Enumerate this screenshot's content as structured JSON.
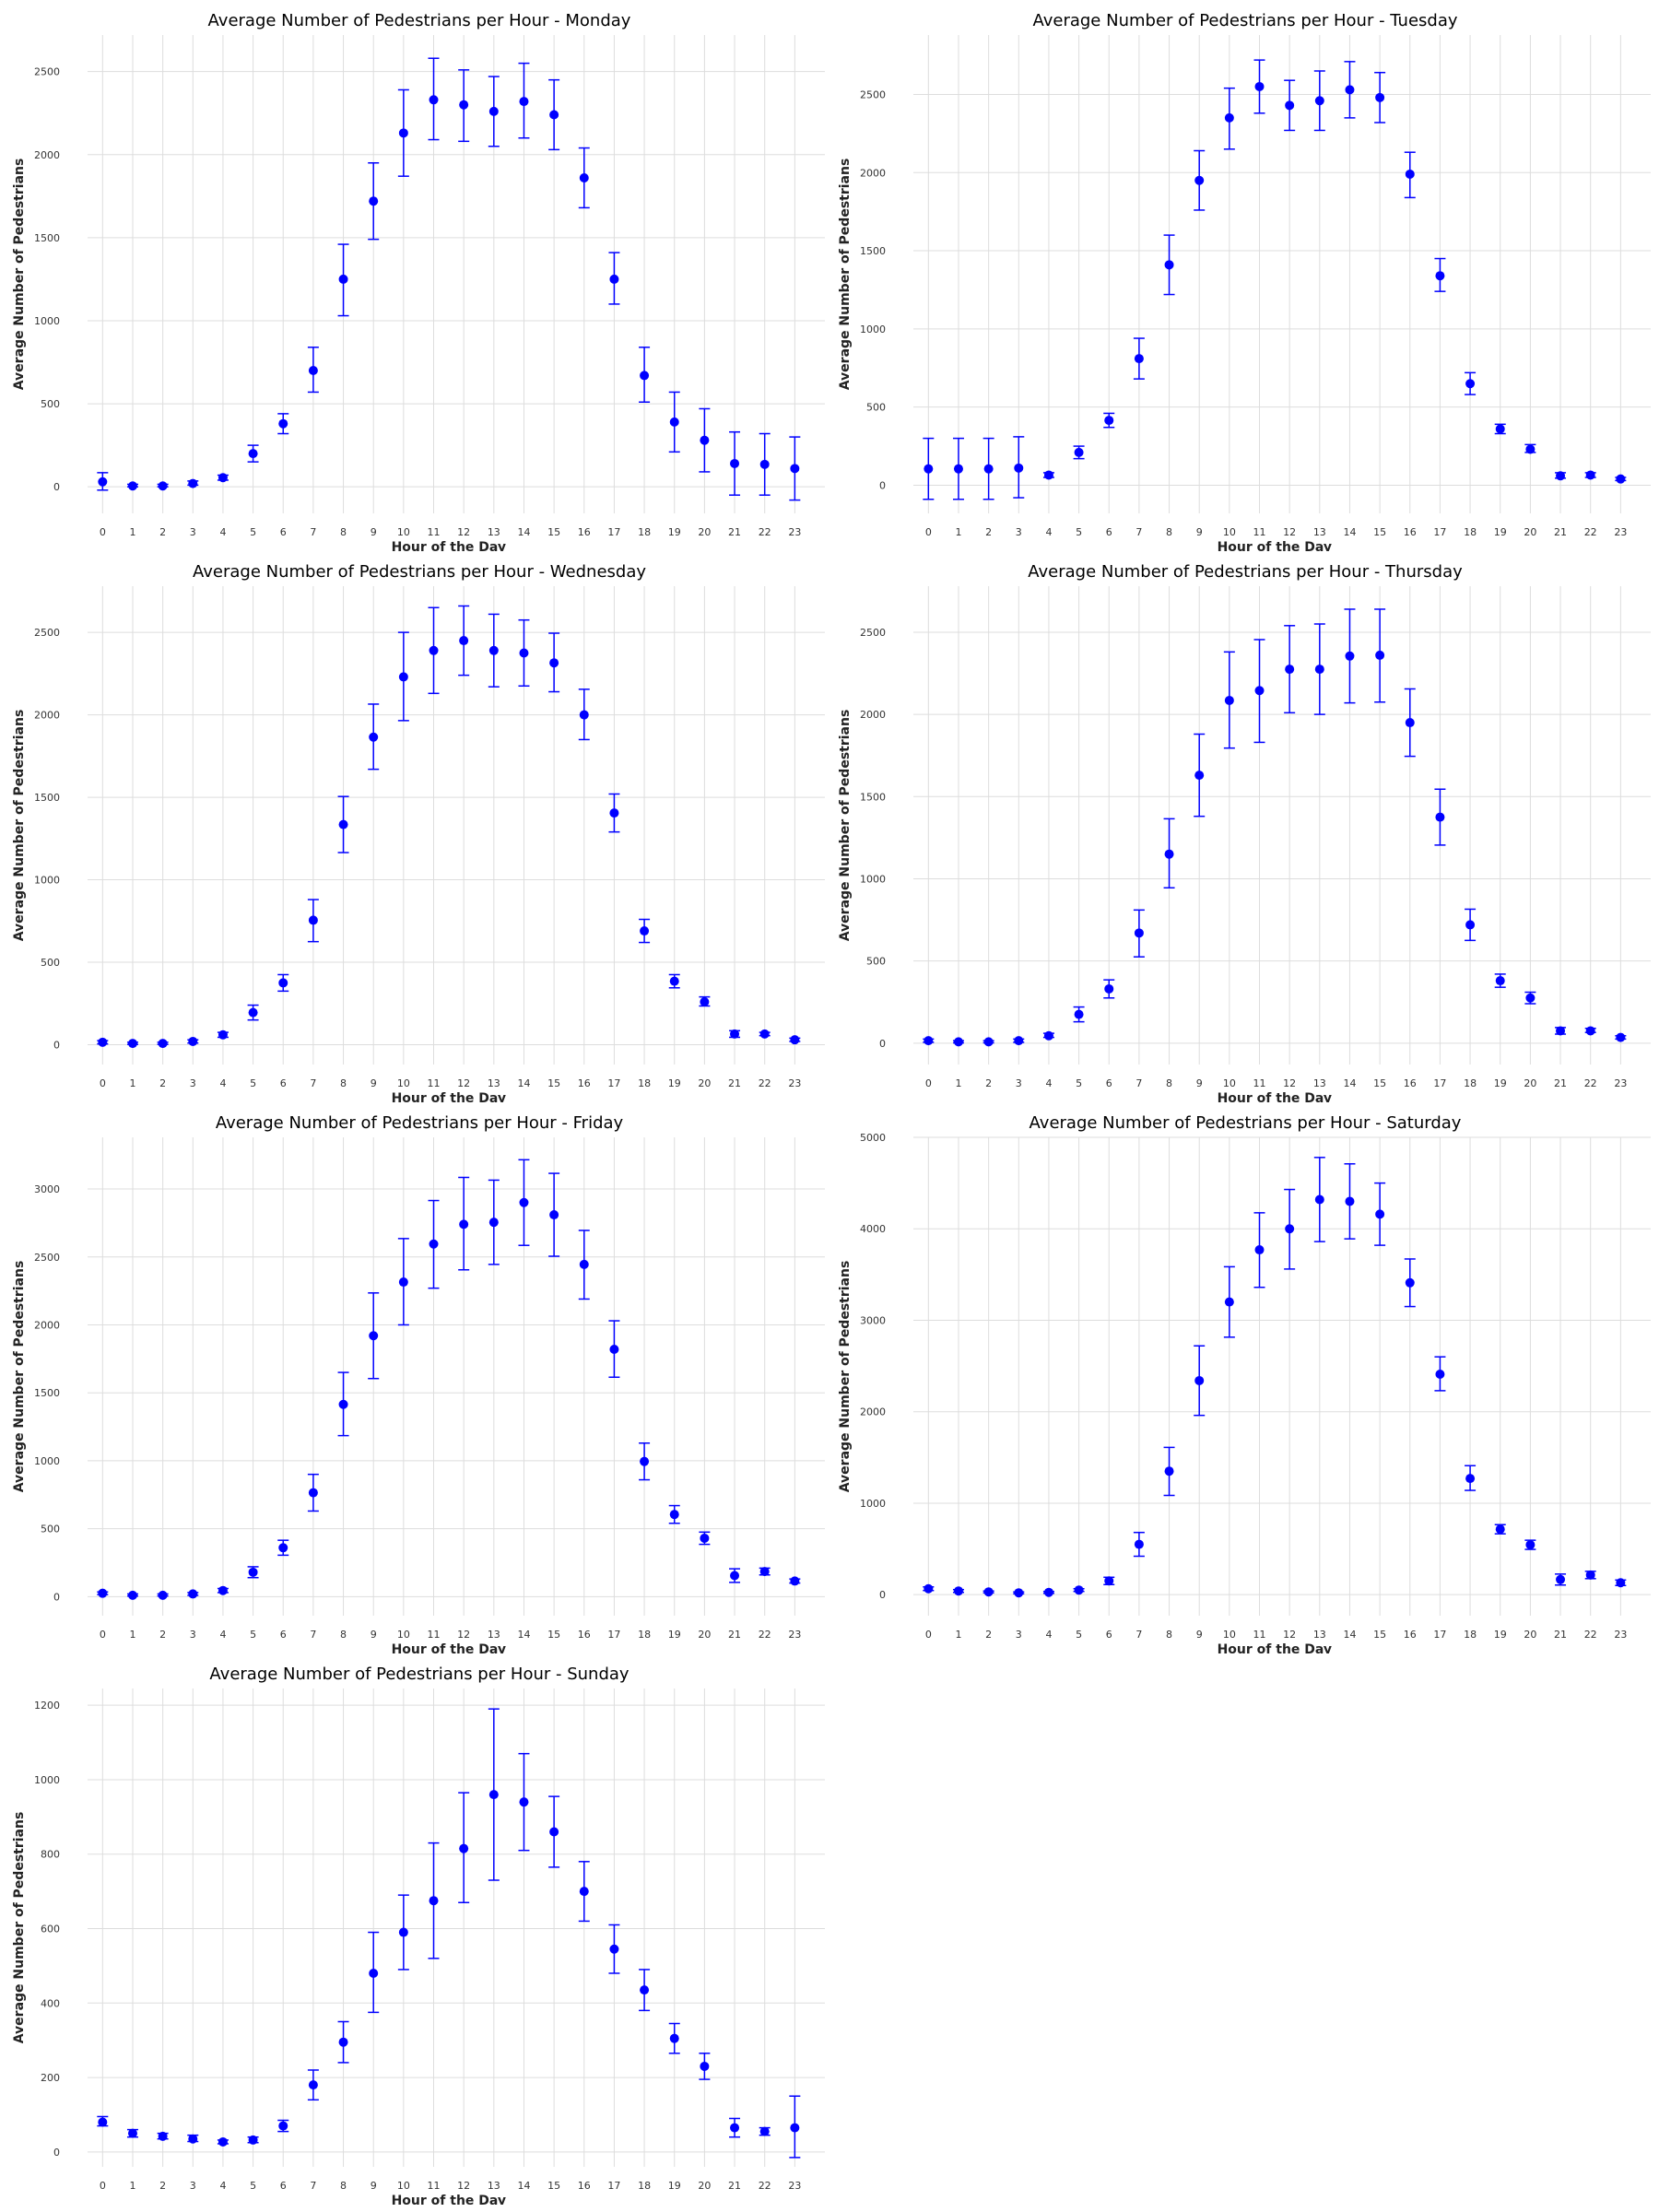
{
  "chart_data": [
    {
      "type": "scatter",
      "title": "Average Number of Pedestrians per Hour - Monday",
      "xlabel": "Hour of the Day",
      "ylabel": "Average Number of Pedestrians",
      "x": [
        0,
        1,
        2,
        3,
        4,
        5,
        6,
        7,
        8,
        9,
        10,
        11,
        12,
        13,
        14,
        15,
        16,
        17,
        18,
        19,
        20,
        21,
        22,
        23
      ],
      "y": [
        30,
        5,
        5,
        20,
        55,
        200,
        380,
        700,
        1250,
        1720,
        2130,
        2330,
        2300,
        2260,
        2320,
        2240,
        1860,
        1250,
        670,
        390,
        280,
        140,
        135,
        110
      ],
      "err_low": [
        -20,
        0,
        0,
        10,
        40,
        150,
        320,
        570,
        1030,
        1490,
        1870,
        2090,
        2080,
        2050,
        2100,
        2030,
        1680,
        1100,
        510,
        210,
        90,
        -50,
        -50,
        -80
      ],
      "err_high": [
        85,
        15,
        15,
        35,
        70,
        250,
        440,
        840,
        1460,
        1950,
        2390,
        2580,
        2510,
        2470,
        2550,
        2450,
        2040,
        1410,
        840,
        570,
        470,
        330,
        320,
        300
      ],
      "ylim": [
        -160,
        2720
      ],
      "yticks": [
        0,
        500,
        1000,
        1500,
        2000,
        2500
      ],
      "color": "#0000ff",
      "grid": true
    },
    {
      "type": "scatter",
      "title": "Average Number of Pedestrians per Hour - Tuesday",
      "xlabel": "Hour of the Day",
      "ylabel": "Average Number of Pedestrians",
      "x": [
        0,
        1,
        2,
        3,
        4,
        5,
        6,
        7,
        8,
        9,
        10,
        11,
        12,
        13,
        14,
        15,
        16,
        17,
        18,
        19,
        20,
        21,
        22,
        23
      ],
      "y": [
        105,
        105,
        105,
        110,
        65,
        210,
        415,
        810,
        1410,
        1950,
        2350,
        2550,
        2430,
        2460,
        2530,
        2480,
        1990,
        1340,
        650,
        360,
        230,
        60,
        65,
        40
      ],
      "err_low": [
        -90,
        -90,
        -90,
        -80,
        50,
        170,
        370,
        680,
        1220,
        1760,
        2150,
        2380,
        2270,
        2270,
        2350,
        2320,
        1840,
        1240,
        580,
        330,
        210,
        45,
        50,
        30
      ],
      "err_high": [
        300,
        300,
        300,
        310,
        80,
        250,
        460,
        940,
        1600,
        2140,
        2540,
        2720,
        2590,
        2650,
        2710,
        2640,
        2130,
        1450,
        720,
        390,
        260,
        80,
        80,
        50
      ],
      "ylim": [
        -180,
        2880
      ],
      "yticks": [
        0,
        500,
        1000,
        1500,
        2000,
        2500
      ],
      "color": "#0000ff",
      "grid": true
    },
    {
      "type": "scatter",
      "title": "Average Number of Pedestrians per Hour - Wednesday",
      "xlabel": "Hour of the Day",
      "ylabel": "Average Number of Pedestrians",
      "x": [
        0,
        1,
        2,
        3,
        4,
        5,
        6,
        7,
        8,
        9,
        10,
        11,
        12,
        13,
        14,
        15,
        16,
        17,
        18,
        19,
        20,
        21,
        22,
        23
      ],
      "y": [
        15,
        8,
        8,
        20,
        60,
        195,
        375,
        755,
        1335,
        1865,
        2230,
        2390,
        2450,
        2390,
        2375,
        2315,
        2000,
        1405,
        690,
        385,
        260,
        65,
        65,
        30
      ],
      "err_low": [
        5,
        2,
        2,
        10,
        45,
        150,
        325,
        625,
        1165,
        1670,
        1965,
        2130,
        2240,
        2170,
        2175,
        2140,
        1850,
        1290,
        620,
        345,
        235,
        45,
        55,
        20
      ],
      "err_high": [
        25,
        15,
        15,
        30,
        75,
        240,
        425,
        880,
        1505,
        2065,
        2500,
        2650,
        2660,
        2610,
        2575,
        2495,
        2155,
        1520,
        760,
        425,
        290,
        85,
        75,
        40
      ],
      "ylim": [
        -120,
        2780
      ],
      "yticks": [
        0,
        500,
        1000,
        1500,
        2000,
        2500
      ],
      "color": "#0000ff",
      "grid": true
    },
    {
      "type": "scatter",
      "title": "Average Number of Pedestrians per Hour - Thursday",
      "xlabel": "Hour of the Day",
      "ylabel": "Average Number of Pedestrians",
      "x": [
        0,
        1,
        2,
        3,
        4,
        5,
        6,
        7,
        8,
        9,
        10,
        11,
        12,
        13,
        14,
        15,
        16,
        17,
        18,
        19,
        20,
        21,
        22,
        23
      ],
      "y": [
        15,
        8,
        8,
        15,
        45,
        175,
        330,
        670,
        1150,
        1630,
        2085,
        2145,
        2275,
        2275,
        2355,
        2360,
        1950,
        1375,
        720,
        380,
        275,
        75,
        75,
        35
      ],
      "err_low": [
        5,
        2,
        2,
        5,
        35,
        130,
        275,
        525,
        945,
        1380,
        1795,
        1830,
        2010,
        2000,
        2070,
        2075,
        1745,
        1205,
        625,
        340,
        240,
        55,
        65,
        25
      ],
      "err_high": [
        25,
        15,
        15,
        25,
        60,
        220,
        385,
        810,
        1365,
        1880,
        2380,
        2455,
        2540,
        2550,
        2640,
        2640,
        2155,
        1545,
        815,
        420,
        310,
        95,
        90,
        45
      ],
      "ylim": [
        -130,
        2780
      ],
      "yticks": [
        0,
        500,
        1000,
        1500,
        2000,
        2500
      ],
      "color": "#0000ff",
      "grid": true
    },
    {
      "type": "scatter",
      "title": "Average Number of Pedestrians per Hour - Friday",
      "xlabel": "Hour of the Day",
      "ylabel": "Average Number of Pedestrians",
      "x": [
        0,
        1,
        2,
        3,
        4,
        5,
        6,
        7,
        8,
        9,
        10,
        11,
        12,
        13,
        14,
        15,
        16,
        17,
        18,
        19,
        20,
        21,
        22,
        23
      ],
      "y": [
        25,
        10,
        10,
        20,
        45,
        180,
        360,
        765,
        1415,
        1920,
        2315,
        2595,
        2740,
        2755,
        2900,
        2810,
        2445,
        1820,
        995,
        605,
        430,
        155,
        185,
        115
      ],
      "err_low": [
        15,
        5,
        5,
        10,
        30,
        140,
        305,
        630,
        1185,
        1605,
        2000,
        2270,
        2405,
        2445,
        2585,
        2505,
        2190,
        1615,
        860,
        540,
        385,
        105,
        160,
        100
      ],
      "err_high": [
        35,
        20,
        20,
        30,
        60,
        220,
        415,
        900,
        1650,
        2235,
        2635,
        2915,
        3085,
        3065,
        3215,
        3115,
        2695,
        2030,
        1130,
        670,
        475,
        205,
        210,
        130
      ],
      "ylim": [
        -140,
        3380
      ],
      "yticks": [
        0,
        500,
        1000,
        1500,
        2000,
        2500,
        3000
      ],
      "color": "#0000ff",
      "grid": true
    },
    {
      "type": "scatter",
      "title": "Average Number of Pedestrians per Hour - Saturday",
      "xlabel": "Hour of the Day",
      "ylabel": "Average Number of Pedestrians",
      "x": [
        0,
        1,
        2,
        3,
        4,
        5,
        6,
        7,
        8,
        9,
        10,
        11,
        12,
        13,
        14,
        15,
        16,
        17,
        18,
        19,
        20,
        21,
        22,
        23
      ],
      "y": [
        65,
        40,
        30,
        20,
        25,
        50,
        150,
        550,
        1350,
        2340,
        3200,
        3770,
        4000,
        4320,
        4300,
        4160,
        3410,
        2410,
        1270,
        715,
        545,
        165,
        215,
        130
      ],
      "err_low": [
        45,
        25,
        20,
        10,
        15,
        35,
        110,
        420,
        1085,
        1960,
        2815,
        3360,
        3560,
        3860,
        3890,
        3820,
        3150,
        2230,
        1140,
        665,
        495,
        105,
        175,
        100
      ],
      "err_high": [
        85,
        55,
        40,
        30,
        35,
        65,
        190,
        680,
        1610,
        2720,
        3585,
        4175,
        4430,
        4780,
        4710,
        4500,
        3670,
        2600,
        1410,
        765,
        595,
        225,
        255,
        160
      ],
      "ylim": [
        -230,
        5000
      ],
      "yticks": [
        0,
        1000,
        2000,
        3000,
        4000,
        5000
      ],
      "color": "#0000ff",
      "grid": true
    },
    {
      "type": "scatter",
      "title": "Average Number of Pedestrians per Hour - Sunday",
      "xlabel": "Hour of the Day",
      "ylabel": "Average Number of Pedestrians",
      "x": [
        0,
        1,
        2,
        3,
        4,
        5,
        6,
        7,
        8,
        9,
        10,
        11,
        12,
        13,
        14,
        15,
        16,
        17,
        18,
        19,
        20,
        21,
        22,
        23
      ],
      "y": [
        80,
        50,
        42,
        35,
        27,
        32,
        70,
        180,
        295,
        480,
        590,
        675,
        815,
        960,
        940,
        860,
        700,
        545,
        435,
        305,
        230,
        65,
        55,
        65
      ],
      "err_low": [
        70,
        40,
        35,
        28,
        22,
        25,
        55,
        140,
        240,
        375,
        490,
        520,
        670,
        730,
        810,
        765,
        620,
        480,
        380,
        265,
        195,
        40,
        45,
        -15
      ],
      "err_high": [
        95,
        60,
        50,
        45,
        32,
        40,
        85,
        220,
        350,
        590,
        690,
        830,
        965,
        1190,
        1070,
        955,
        780,
        610,
        490,
        345,
        265,
        90,
        65,
        150
      ],
      "ylim": [
        -40,
        1245
      ],
      "yticks": [
        0,
        200,
        400,
        600,
        800,
        1000,
        1200
      ],
      "color": "#0000ff",
      "grid": true
    }
  ]
}
